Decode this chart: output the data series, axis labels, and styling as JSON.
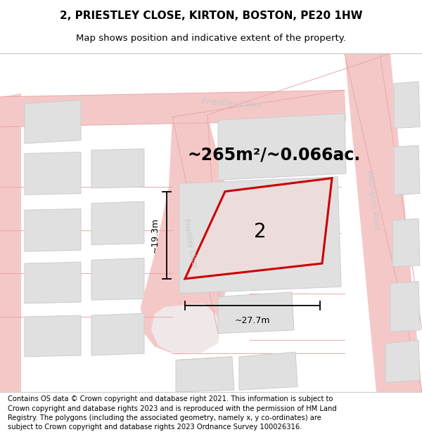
{
  "title_line1": "2, PRIESTLEY CLOSE, KIRTON, BOSTON, PE20 1HW",
  "title_line2": "Map shows position and indicative extent of the property.",
  "area_text": "~265m²/~0.066ac.",
  "plot_number": "2",
  "dim_width": "~27.7m",
  "dim_height": "~19.3m",
  "footer_text": "Contains OS data © Crown copyright and database right 2021. This information is subject to Crown copyright and database rights 2023 and is reproduced with the permission of HM Land Registry. The polygons (including the associated geometry, namely x, y co-ordinates) are subject to Crown copyright and database rights 2023 Ordnance Survey 100026316.",
  "road_color": "#f5c8c8",
  "road_outline_color": "#e8a8a8",
  "building_color": "#e0e0e0",
  "building_stroke": "#cccccc",
  "street_label_color": "#c8c8c8",
  "highlight_stroke": "#cc0000",
  "highlight_fill": "#eddcdc",
  "map_bg": "#ffffff",
  "title_fontsize": 11,
  "subtitle_fontsize": 9.5,
  "area_fontsize": 17,
  "plot_label_fontsize": 20,
  "dim_fontsize": 9,
  "street_fontsize": 8.5,
  "footer_fontsize": 7.2
}
